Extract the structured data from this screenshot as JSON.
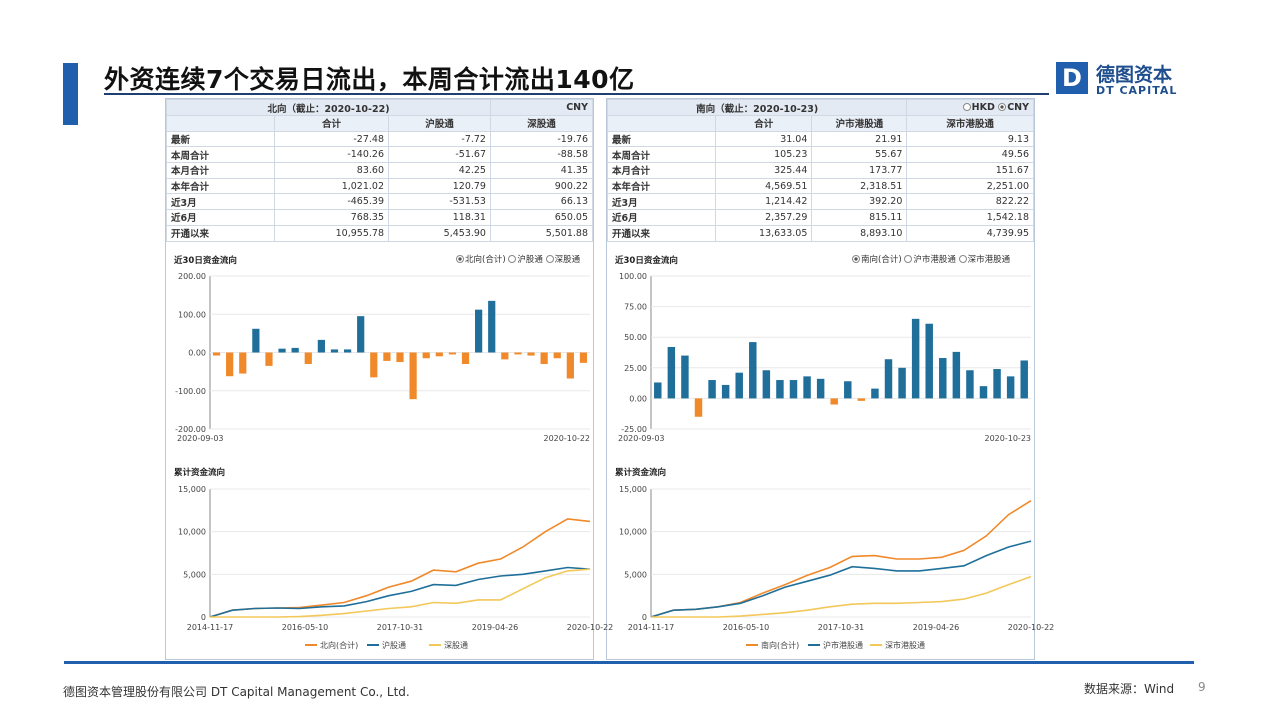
{
  "header": {
    "title": "外资连续7个交易日流出，本周合计流出140亿"
  },
  "logo": {
    "cn": "德图资本",
    "en": "DT CAPITAL",
    "mark": "D"
  },
  "left": {
    "table_title": "北向（截止：2020-10-22)",
    "currency": "CNY",
    "columns": [
      "合计",
      "沪股通",
      "深股通"
    ],
    "rows": [
      {
        "label": "最新",
        "values": [
          "-27.48",
          "-7.72",
          "-19.76"
        ]
      },
      {
        "label": "本周合计",
        "values": [
          "-140.26",
          "-51.67",
          "-88.58"
        ]
      },
      {
        "label": "本月合计",
        "values": [
          "83.60",
          "42.25",
          "41.35"
        ]
      },
      {
        "label": "本年合计",
        "values": [
          "1,021.02",
          "120.79",
          "900.22"
        ]
      },
      {
        "label": "近3月",
        "values": [
          "-465.39",
          "-531.53",
          "66.13"
        ]
      },
      {
        "label": "近6月",
        "values": [
          "768.35",
          "118.31",
          "650.05"
        ]
      },
      {
        "label": "开通以来",
        "values": [
          "10,955.78",
          "5,453.90",
          "5,501.88"
        ]
      }
    ],
    "flow_title": "近30日资金流向",
    "flow_radios": [
      "北向(合计)",
      "沪股通",
      "深股通"
    ],
    "cum_title": "累计资金流向"
  },
  "right": {
    "table_title": "南向（截止：2020-10-23)",
    "currency_options": [
      "HKD",
      "CNY"
    ],
    "columns": [
      "合计",
      "沪市港股通",
      "深市港股通"
    ],
    "rows": [
      {
        "label": "最新",
        "values": [
          "31.04",
          "21.91",
          "9.13"
        ]
      },
      {
        "label": "本周合计",
        "values": [
          "105.23",
          "55.67",
          "49.56"
        ]
      },
      {
        "label": "本月合计",
        "values": [
          "325.44",
          "173.77",
          "151.67"
        ]
      },
      {
        "label": "本年合计",
        "values": [
          "4,569.51",
          "2,318.51",
          "2,251.00"
        ]
      },
      {
        "label": "近3月",
        "values": [
          "1,214.42",
          "392.20",
          "822.22"
        ]
      },
      {
        "label": "近6月",
        "values": [
          "2,357.29",
          "815.11",
          "1,542.18"
        ]
      },
      {
        "label": "开通以来",
        "values": [
          "13,633.05",
          "8,893.10",
          "4,739.95"
        ]
      }
    ],
    "flow_title": "近30日资金流向",
    "flow_radios": [
      "南向(合计)",
      "沪市港股通",
      "深市港股通"
    ],
    "cum_title": "累计资金流向"
  },
  "colors": {
    "orange": "#f0892a",
    "blue": "#1f6f9a",
    "gold": "#f3c85a",
    "accent": "#1f5fae"
  },
  "chart_data": [
    {
      "type": "bar",
      "title": "近30日资金流向",
      "x_start": "2020-09-03",
      "x_end": "2020-10-22",
      "ylim": [
        -200,
        200
      ],
      "yticks": [
        "200.00",
        "100.00",
        "0.00",
        "-100.00",
        "-200.00"
      ],
      "values": [
        -8,
        -62,
        -55,
        62,
        -35,
        10,
        12,
        -30,
        33,
        8,
        8,
        95,
        -65,
        -22,
        -25,
        -122,
        -15,
        -10,
        -5,
        -30,
        112,
        135,
        -18,
        -5,
        -8,
        -30,
        -15,
        -68,
        -27
      ]
    },
    {
      "type": "bar",
      "title": "近30日资金流向",
      "x_start": "2020-09-03",
      "x_end": "2020-10-23",
      "ylim": [
        -25,
        100
      ],
      "yticks": [
        "100.00",
        "75.00",
        "50.00",
        "25.00",
        "0.00",
        "-25.00"
      ],
      "values": [
        13,
        42,
        35,
        -15,
        15,
        11,
        21,
        46,
        23,
        15,
        15,
        18,
        16,
        -5,
        14,
        -2,
        8,
        32,
        25,
        65,
        61,
        33,
        38,
        23,
        10,
        24,
        18,
        31
      ]
    },
    {
      "type": "line",
      "title": "累计资金流向",
      "ylim": [
        0,
        15000
      ],
      "yticks": [
        "15,000",
        "10,000",
        "5,000",
        "0"
      ],
      "xticks": [
        "2014-11-17",
        "2016-05-10",
        "2017-10-31",
        "2019-04-26",
        "2020-10-22"
      ],
      "series": [
        {
          "name": "北向(合计)",
          "values": [
            0,
            800,
            1000,
            1050,
            1100,
            1400,
            1700,
            2500,
            3500,
            4200,
            5500,
            5300,
            6300,
            6800,
            8200,
            10000,
            11500,
            11200
          ]
        },
        {
          "name": "沪股通",
          "values": [
            0,
            800,
            1000,
            1050,
            1000,
            1200,
            1300,
            1800,
            2500,
            3000,
            3800,
            3700,
            4400,
            4800,
            5000,
            5400,
            5800,
            5600
          ]
        },
        {
          "name": "深股通",
          "values": [
            0,
            0,
            0,
            0,
            50,
            200,
            400,
            700,
            1000,
            1200,
            1700,
            1600,
            2000,
            2000,
            3300,
            4600,
            5400,
            5600
          ]
        }
      ]
    },
    {
      "type": "line",
      "title": "累计资金流向",
      "ylim": [
        0,
        15000
      ],
      "yticks": [
        "15,000",
        "10,000",
        "5,000",
        "0"
      ],
      "xticks": [
        "2014-11-17",
        "2016-05-10",
        "2017-10-31",
        "2019-04-26",
        "2020-10-22"
      ],
      "series": [
        {
          "name": "南向(合计)",
          "values": [
            0,
            800,
            900,
            1200,
            1700,
            2800,
            3800,
            4900,
            5800,
            7100,
            7200,
            6800,
            6800,
            7000,
            7800,
            9500,
            12000,
            13633
          ]
        },
        {
          "name": "沪市港股通",
          "values": [
            0,
            800,
            900,
            1200,
            1600,
            2500,
            3500,
            4200,
            4900,
            5900,
            5700,
            5400,
            5400,
            5700,
            6000,
            7200,
            8200,
            8893
          ]
        },
        {
          "name": "深市港股通",
          "values": [
            0,
            0,
            0,
            0,
            100,
            300,
            500,
            800,
            1200,
            1500,
            1600,
            1600,
            1700,
            1800,
            2100,
            2800,
            3800,
            4740
          ]
        }
      ]
    }
  ],
  "footer": {
    "company": "德图资本管理股份有限公司  DT Capital Management Co., Ltd.",
    "source": "数据来源：Wind",
    "page": "9"
  }
}
